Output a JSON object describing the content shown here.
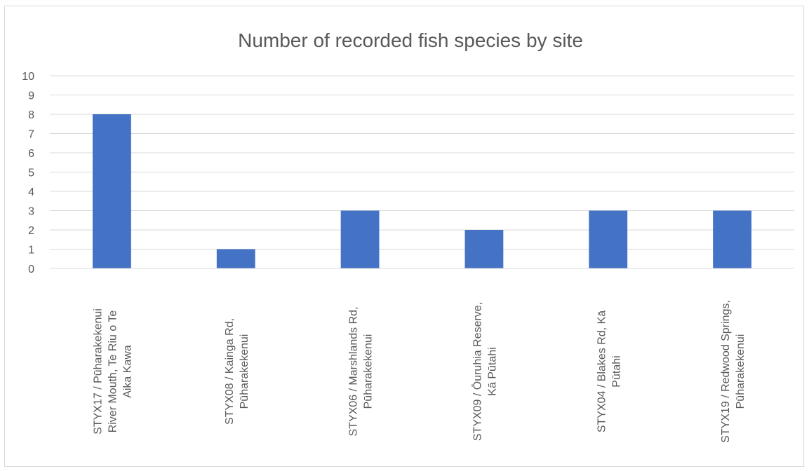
{
  "chart_data": {
    "type": "bar",
    "title": "Number of recorded fish species by site",
    "xlabel": "",
    "ylabel": "",
    "ylim": [
      0,
      10
    ],
    "yticks": [
      0,
      1,
      2,
      3,
      4,
      5,
      6,
      7,
      8,
      9,
      10
    ],
    "grid": true,
    "legend": "none",
    "bar_color": "#4472C4",
    "categories": [
      "STYX17 / Pūharakekenui River Mouth, Te Riu o Te Aika Kawa",
      "STYX08 / Kainga Rd, Pūharakekenui",
      "STYX06 / Marshlands Rd, Pūharakekenui",
      "STYX09 / Ōuruhia Reserve, Kā Pūtahi",
      "STYX04 / Blakes Rd, Kā Pūtahi",
      "STYX19 / Redwood Springs, Pūharakekenui"
    ],
    "category_lines": [
      [
        "STYX17 / Pūharakekenui",
        "River Mouth, Te Riu o Te",
        "Aika Kawa"
      ],
      [
        "STYX08 / Kainga Rd,",
        "Pūharakekenui"
      ],
      [
        "STYX06 / Marshlands Rd,",
        "Pūharakekenui"
      ],
      [
        "STYX09 / Ōuruhia Reserve,",
        "Kā Pūtahi"
      ],
      [
        "STYX04 / Blakes Rd, Kā",
        "Pūtahi"
      ],
      [
        "STYX19 / Redwood Springs,",
        "Pūharakekenui"
      ]
    ],
    "values": [
      8,
      1,
      3,
      2,
      3,
      3
    ]
  }
}
